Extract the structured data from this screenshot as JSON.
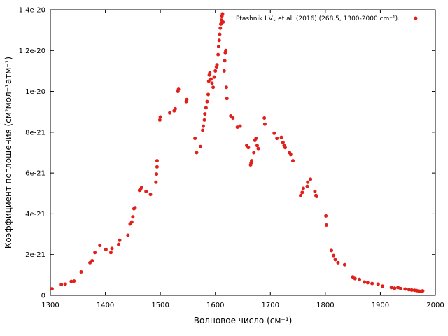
{
  "chart_data": {
    "type": "scatter",
    "xlabel": "Волновое число (см⁻¹)",
    "ylabel": "Коэффициент поглощения (см²мол⁻¹атм⁻¹)",
    "xlim": [
      1300,
      2000
    ],
    "ylim": [
      0,
      1.4e-20
    ],
    "xticks": [
      1300,
      1400,
      1500,
      1600,
      1700,
      1800,
      1900,
      2000
    ],
    "xtick_labels": [
      "1300",
      "1400",
      "1500",
      "1600",
      "1700",
      "1800",
      "1900",
      "2000"
    ],
    "yticks": [
      0,
      2e-21,
      4e-21,
      6e-21,
      8e-21,
      1e-20,
      1.2e-20,
      1.4e-20
    ],
    "ytick_labels": [
      "0",
      "2e-21",
      "4e-21",
      "6e-21",
      "8e-21",
      "1e-20",
      "1.2e-20",
      "1.4e-20"
    ],
    "grid": false,
    "legend_position": "top-right",
    "colors": {
      "series": "#e0201b"
    },
    "series": [
      {
        "name": "Ptashnik I.V., et al. (2016) (268.5, 1300-2000 cm⁻¹).",
        "points": [
          [
            1303,
            3.2e-22
          ],
          [
            1320,
            5.3e-22
          ],
          [
            1327,
            5.5e-22
          ],
          [
            1338,
            6.8e-22
          ],
          [
            1343,
            7e-22
          ],
          [
            1356,
            1.15e-21
          ],
          [
            1372,
            1.6e-21
          ],
          [
            1376,
            1.7e-21
          ],
          [
            1381,
            2.1e-21
          ],
          [
            1390,
            2.45e-21
          ],
          [
            1401,
            2.25e-21
          ],
          [
            1410,
            2.1e-21
          ],
          [
            1412,
            2.3e-21
          ],
          [
            1424,
            2.5e-21
          ],
          [
            1426,
            2.7e-21
          ],
          [
            1441,
            2.95e-21
          ],
          [
            1445,
            3.5e-21
          ],
          [
            1448,
            3.6e-21
          ],
          [
            1450,
            3.85e-21
          ],
          [
            1452,
            4.25e-21
          ],
          [
            1454,
            4.3e-21
          ],
          [
            1462,
            5.15e-21
          ],
          [
            1464,
            5.2e-21
          ],
          [
            1466,
            5.3e-21
          ],
          [
            1474,
            5.1e-21
          ],
          [
            1482,
            4.95e-21
          ],
          [
            1492,
            5.55e-21
          ],
          [
            1493,
            5.95e-21
          ],
          [
            1494,
            6.3e-21
          ],
          [
            1494,
            6.6e-21
          ],
          [
            1499,
            8.6e-21
          ],
          [
            1500,
            8.75e-21
          ],
          [
            1517,
            8.95e-21
          ],
          [
            1525,
            9.05e-21
          ],
          [
            1527,
            9.15e-21
          ],
          [
            1532,
            1e-20
          ],
          [
            1533,
            1.01e-20
          ],
          [
            1547,
            9.5e-21
          ],
          [
            1548,
            9.6e-21
          ],
          [
            1563,
            7.7e-21
          ],
          [
            1566,
            7e-21
          ],
          [
            1573,
            7.3e-21
          ],
          [
            1577,
            8.1e-21
          ],
          [
            1578,
            8.3e-21
          ],
          [
            1580,
            8.6e-21
          ],
          [
            1581,
            8.9e-21
          ],
          [
            1583,
            9.2e-21
          ],
          [
            1585,
            9.5e-21
          ],
          [
            1587,
            9.85e-21
          ],
          [
            1588,
            1.05e-20
          ],
          [
            1589,
            1.08e-20
          ],
          [
            1590,
            1.09e-20
          ],
          [
            1592,
            1.06e-20
          ],
          [
            1594,
            1.04e-20
          ],
          [
            1596,
            1.02e-20
          ],
          [
            1598,
            1.07e-20
          ],
          [
            1600,
            1.1e-20
          ],
          [
            1602,
            1.12e-20
          ],
          [
            1603,
            1.13e-20
          ],
          [
            1605,
            1.18e-20
          ],
          [
            1606,
            1.22e-20
          ],
          [
            1607,
            1.25e-20
          ],
          [
            1608,
            1.28e-20
          ],
          [
            1609,
            1.31e-20
          ],
          [
            1610,
            1.33e-20
          ],
          [
            1611,
            1.35e-20
          ],
          [
            1612,
            1.37e-20
          ],
          [
            1613,
            1.38e-20
          ],
          [
            1614,
            1.34e-20
          ],
          [
            1616,
            1.1e-20
          ],
          [
            1617,
            1.15e-20
          ],
          [
            1618,
            1.19e-20
          ],
          [
            1619,
            1.2e-20
          ],
          [
            1620,
            1.02e-20
          ],
          [
            1621,
            9.65e-21
          ],
          [
            1628,
            8.8e-21
          ],
          [
            1632,
            8.7e-21
          ],
          [
            1640,
            8.25e-21
          ],
          [
            1645,
            8.3e-21
          ],
          [
            1657,
            7.35e-21
          ],
          [
            1660,
            7.25e-21
          ],
          [
            1664,
            6.4e-21
          ],
          [
            1665,
            6.5e-21
          ],
          [
            1666,
            6.6e-21
          ],
          [
            1670,
            7e-21
          ],
          [
            1672,
            7.6e-21
          ],
          [
            1674,
            7.7e-21
          ],
          [
            1676,
            7.35e-21
          ],
          [
            1678,
            7.2e-21
          ],
          [
            1689,
            8.7e-21
          ],
          [
            1690,
            8.4e-21
          ],
          [
            1707,
            7.95e-21
          ],
          [
            1712,
            7.7e-21
          ],
          [
            1720,
            7.75e-21
          ],
          [
            1723,
            7.5e-21
          ],
          [
            1725,
            7.35e-21
          ],
          [
            1727,
            7.25e-21
          ],
          [
            1735,
            7e-21
          ],
          [
            1737,
            6.9e-21
          ],
          [
            1741,
            6.6e-21
          ],
          [
            1755,
            4.9e-21
          ],
          [
            1758,
            5.05e-21
          ],
          [
            1760,
            5.25e-21
          ],
          [
            1767,
            5.35e-21
          ],
          [
            1768,
            5.55e-21
          ],
          [
            1773,
            5.7e-21
          ],
          [
            1781,
            5.1e-21
          ],
          [
            1783,
            4.9e-21
          ],
          [
            1784,
            4.85e-21
          ],
          [
            1801,
            3.9e-21
          ],
          [
            1802,
            3.45e-21
          ],
          [
            1811,
            2.2e-21
          ],
          [
            1815,
            1.95e-21
          ],
          [
            1818,
            1.75e-21
          ],
          [
            1823,
            1.6e-21
          ],
          [
            1835,
            1.5e-21
          ],
          [
            1850,
            9e-22
          ],
          [
            1854,
            8.2e-22
          ],
          [
            1862,
            7.8e-22
          ],
          [
            1871,
            6.5e-22
          ],
          [
            1877,
            6.2e-22
          ],
          [
            1885,
            5.8e-22
          ],
          [
            1896,
            5.5e-22
          ],
          [
            1904,
            4.5e-22
          ],
          [
            1920,
            3.8e-22
          ],
          [
            1926,
            3.5e-22
          ],
          [
            1932,
            3.8e-22
          ],
          [
            1937,
            3.3e-22
          ],
          [
            1945,
            3.1e-22
          ],
          [
            1952,
            2.8e-22
          ],
          [
            1957,
            2.6e-22
          ],
          [
            1962,
            2.5e-22
          ],
          [
            1966,
            2.3e-22
          ],
          [
            1970,
            2.1e-22
          ],
          [
            1974,
            2e-22
          ],
          [
            1977,
            2.2e-22
          ]
        ]
      }
    ]
  }
}
